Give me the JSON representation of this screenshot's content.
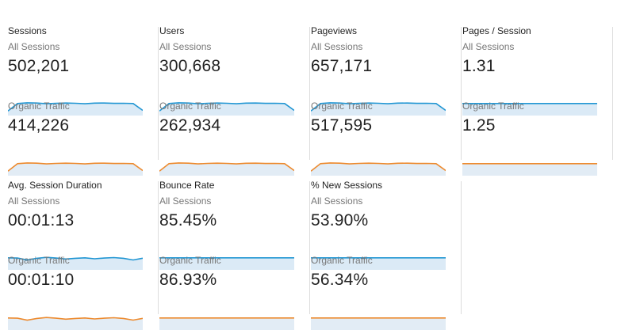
{
  "colors": {
    "all_sessions": "#2196d3",
    "organic_traffic": "#ed8a2e",
    "all_fill": "#dbeaf6",
    "organic_fill": "#e2ecf5"
  },
  "cards": [
    {
      "metric": "Sessions",
      "all": {
        "label": "All Sessions",
        "value": "502,201"
      },
      "organic": {
        "label": "Organic Traffic",
        "value": "414,226"
      }
    },
    {
      "metric": "Users",
      "all": {
        "label": "All Sessions",
        "value": "300,668"
      },
      "organic": {
        "label": "Organic Traffic",
        "value": "262,934"
      }
    },
    {
      "metric": "Pageviews",
      "all": {
        "label": "All Sessions",
        "value": "657,171"
      },
      "organic": {
        "label": "Organic Traffic",
        "value": "517,595"
      }
    },
    {
      "metric": "Pages / Session",
      "all": {
        "label": "All Sessions",
        "value": "1.31"
      },
      "organic": {
        "label": "Organic Traffic",
        "value": "1.25"
      }
    },
    {
      "metric": "Avg. Session Duration",
      "all": {
        "label": "All Sessions",
        "value": "00:01:13"
      },
      "organic": {
        "label": "Organic Traffic",
        "value": "00:01:10"
      }
    },
    {
      "metric": "Bounce Rate",
      "all": {
        "label": "All Sessions",
        "value": "85.45%"
      },
      "organic": {
        "label": "Organic Traffic",
        "value": "86.93%"
      }
    },
    {
      "metric": "% New Sessions",
      "all": {
        "label": "All Sessions",
        "value": "53.90%"
      },
      "organic": {
        "label": "Organic Traffic",
        "value": "56.34%"
      }
    }
  ]
}
